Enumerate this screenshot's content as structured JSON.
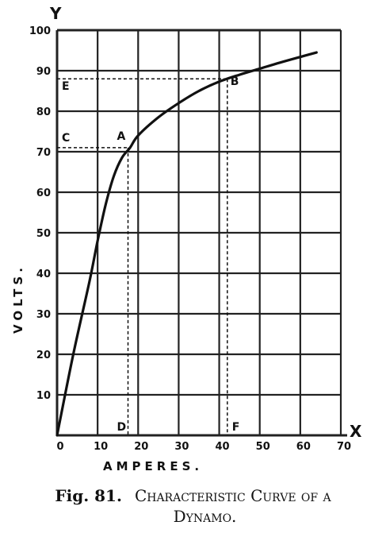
{
  "caption": {
    "fig": "Fig. 81.",
    "title_line1": "Characteristic Curve of a",
    "title_line2": "Dynamo."
  },
  "chart_data": {
    "type": "line",
    "title": "Characteristic Curve of a Dynamo.",
    "xlabel": "AMPERES.",
    "ylabel": "VOLTS.",
    "x_axis_letter": "X",
    "y_axis_letter": "Y",
    "xlim": [
      0,
      70
    ],
    "ylim": [
      0,
      100
    ],
    "x_ticks": [
      "0",
      "10",
      "20",
      "30",
      "40",
      "50",
      "60",
      "70"
    ],
    "y_ticks": [
      "0",
      "10",
      "20",
      "30",
      "40",
      "50",
      "60",
      "70",
      "80",
      "90",
      "100"
    ],
    "grid": true,
    "series": [
      {
        "x": [
          0,
          4,
          8,
          10,
          12,
          14,
          16,
          18,
          20,
          25,
          30,
          35,
          40,
          45,
          50,
          55,
          60,
          64
        ],
        "y": [
          0,
          20,
          38,
          48,
          57,
          64,
          68.5,
          71,
          74,
          78.5,
          82,
          85,
          87.3,
          89,
          90.5,
          92,
          93.4,
          94.5
        ]
      }
    ],
    "annotations": [
      {
        "label": "A",
        "x": 17.5,
        "y": 71
      },
      {
        "label": "B",
        "x": 42,
        "y": 88
      },
      {
        "label": "C",
        "x": 0,
        "y": 71
      },
      {
        "label": "D",
        "x": 17.5,
        "y": 0
      },
      {
        "label": "E",
        "x": 0,
        "y": 88
      },
      {
        "label": "F",
        "x": 42,
        "y": 0
      }
    ],
    "line_color": "#111111",
    "grid_color": "#222222"
  }
}
